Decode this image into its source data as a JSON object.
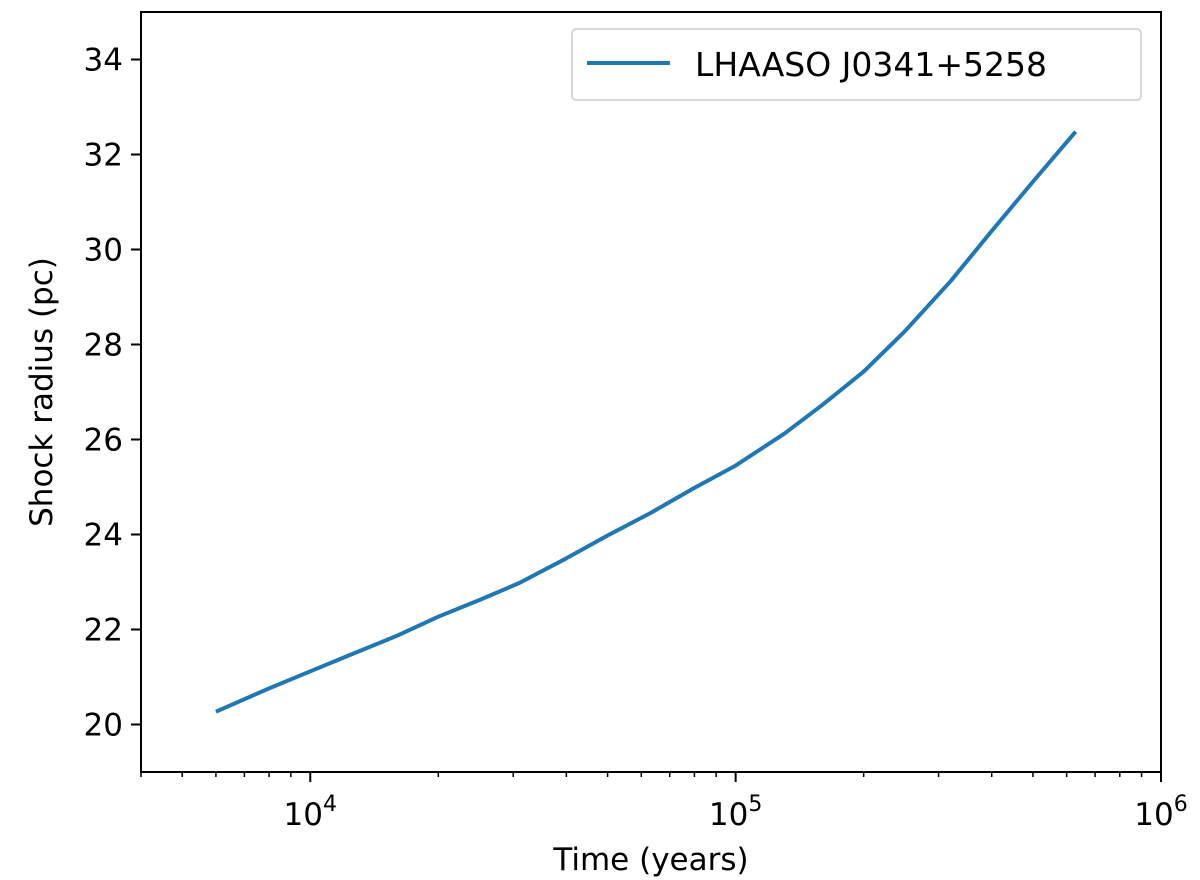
{
  "chart_data": {
    "type": "line",
    "title": "",
    "xlabel": "Time (years)",
    "ylabel": "Shock radius (pc)",
    "xscale": "log",
    "xlim": [
      4000,
      1000000
    ],
    "ylim": [
      19,
      35
    ],
    "grid": false,
    "legend_position": "top-right",
    "x_ticks": [
      {
        "value": 10000,
        "base": "10",
        "exp": "4"
      },
      {
        "value": 100000,
        "base": "10",
        "exp": "5"
      },
      {
        "value": 1000000,
        "base": "10",
        "exp": "6"
      }
    ],
    "y_ticks": [
      {
        "value": 20,
        "label": "20"
      },
      {
        "value": 22,
        "label": "22"
      },
      {
        "value": 24,
        "label": "24"
      },
      {
        "value": 26,
        "label": "26"
      },
      {
        "value": 28,
        "label": "28"
      },
      {
        "value": 30,
        "label": "30"
      },
      {
        "value": 32,
        "label": "32"
      },
      {
        "value": 34,
        "label": "34"
      }
    ],
    "series": [
      {
        "name": "LHAASO J0341+5258",
        "color": "#1f77b4",
        "x": [
          6000,
          8000,
          10000,
          13000,
          16000,
          20000,
          25000,
          31000,
          40000,
          50000,
          63000,
          80000,
          100000,
          130000,
          160000,
          200000,
          250000,
          320000,
          400000,
          500000,
          630000
        ],
        "y": [
          20.27,
          20.76,
          21.12,
          21.54,
          21.87,
          22.27,
          22.62,
          22.98,
          23.5,
          23.98,
          24.45,
          24.98,
          25.45,
          26.12,
          26.73,
          27.43,
          28.28,
          29.33,
          30.39,
          31.43,
          32.48
        ]
      }
    ]
  }
}
